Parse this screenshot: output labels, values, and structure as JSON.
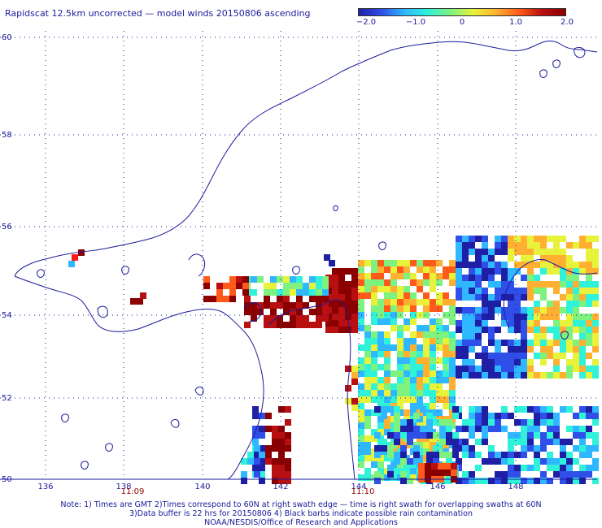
{
  "title": "Rapidscat 12.5km uncorrected — model winds 20150806 ascending",
  "colorbar": {
    "ticks": [
      "−2.0",
      "−1.0",
      "0",
      "1.0",
      "2.0"
    ],
    "colors": [
      "#1f1fa6",
      "#2f4fe8",
      "#2fb8ff",
      "#2ff2d8",
      "#7ef27e",
      "#e8f23a",
      "#ffb030",
      "#ff5a1a",
      "#b81010",
      "#8a0000"
    ]
  },
  "map": {
    "lon_ticks": [
      "136",
      "138",
      "140",
      "142",
      "144",
      "146",
      "148"
    ],
    "lat_ticks": [
      "60",
      "58",
      "56",
      "54",
      "52",
      "50"
    ],
    "time_labels": [
      "11:09",
      "11:10"
    ],
    "coast_color": "#1a1a9a",
    "grid_color": "#1a1a9a"
  },
  "notes": [
    "Note: 1) Times are GMT 2)Times correspond to 60N at right swath edge — time is right swath for overlapping swaths at 60N",
    "3)Data buffer is 22 hrs for 20150806 4) Black barbs indicate possible rain contamination",
    "NOAA/NESDIS/Office of Research and Applications"
  ]
}
